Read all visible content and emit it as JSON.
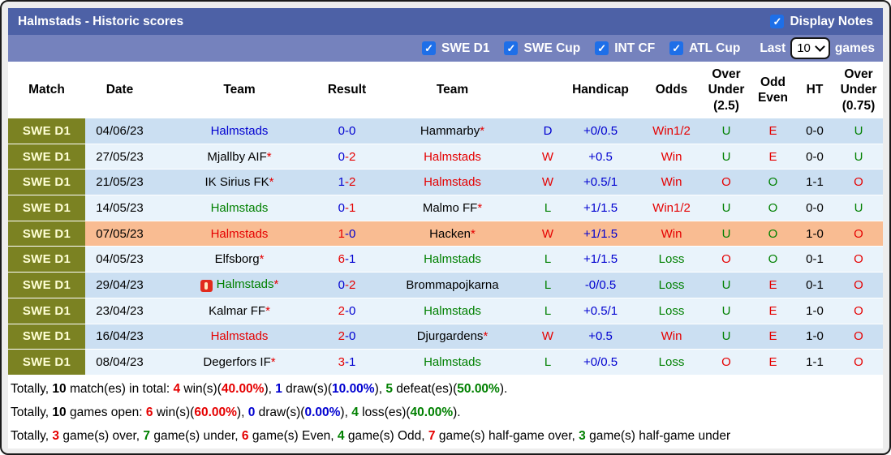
{
  "title_bar": {
    "title": "Halmstads - Historic scores",
    "display_notes_label": "Display Notes"
  },
  "filter_bar": {
    "competitions": [
      "SWE D1",
      "SWE Cup",
      "INT CF",
      "ATL Cup"
    ],
    "last_label": "Last",
    "games_count": "10",
    "games_label": "games"
  },
  "table": {
    "headers": [
      "Match",
      "Date",
      "Team",
      "Result",
      "Team",
      "",
      "Handicap",
      "Odds",
      "Over Under (2.5)",
      "Odd Even",
      "HT",
      "Over Under (0.75)"
    ],
    "rows": [
      {
        "league": "SWE D1",
        "date": "04/06/23",
        "home": {
          "name": "Halmstads",
          "color": "blue",
          "star": false,
          "warn": false
        },
        "score": {
          "home": "0",
          "home_color": "blue",
          "away": "0",
          "away_color": "blue"
        },
        "away": {
          "name": "Hammarby",
          "color": "black",
          "star": true,
          "warn": false
        },
        "letter": {
          "t": "D",
          "c": "blue"
        },
        "handicap": "+0/0.5",
        "odds": {
          "t": "Win1/2",
          "c": "red"
        },
        "ou25": {
          "t": "U",
          "c": "green"
        },
        "odd_even": {
          "t": "E",
          "c": "red"
        },
        "ht": "0-0",
        "ou075": {
          "t": "U",
          "c": "green"
        },
        "bg": "dark"
      },
      {
        "league": "SWE D1",
        "date": "27/05/23",
        "home": {
          "name": "Mjallby AIF",
          "color": "black",
          "star": true,
          "warn": false
        },
        "score": {
          "home": "0",
          "home_color": "blue",
          "away": "2",
          "away_color": "red"
        },
        "away": {
          "name": "Halmstads",
          "color": "red",
          "star": false,
          "warn": false
        },
        "letter": {
          "t": "W",
          "c": "red"
        },
        "handicap": "+0.5",
        "odds": {
          "t": "Win",
          "c": "red"
        },
        "ou25": {
          "t": "U",
          "c": "green"
        },
        "odd_even": {
          "t": "E",
          "c": "red"
        },
        "ht": "0-0",
        "ou075": {
          "t": "U",
          "c": "green"
        },
        "bg": "light"
      },
      {
        "league": "SWE D1",
        "date": "21/05/23",
        "home": {
          "name": "IK Sirius FK",
          "color": "black",
          "star": true,
          "warn": false
        },
        "score": {
          "home": "1",
          "home_color": "blue",
          "away": "2",
          "away_color": "red"
        },
        "away": {
          "name": "Halmstads",
          "color": "red",
          "star": false,
          "warn": false
        },
        "letter": {
          "t": "W",
          "c": "red"
        },
        "handicap": "+0.5/1",
        "odds": {
          "t": "Win",
          "c": "red"
        },
        "ou25": {
          "t": "O",
          "c": "red"
        },
        "odd_even": {
          "t": "O",
          "c": "green"
        },
        "ht": "1-1",
        "ou075": {
          "t": "O",
          "c": "red"
        },
        "bg": "dark"
      },
      {
        "league": "SWE D1",
        "date": "14/05/23",
        "home": {
          "name": "Halmstads",
          "color": "green",
          "star": false,
          "warn": false
        },
        "score": {
          "home": "0",
          "home_color": "blue",
          "away": "1",
          "away_color": "red"
        },
        "away": {
          "name": "Malmo FF",
          "color": "black",
          "star": true,
          "warn": false
        },
        "letter": {
          "t": "L",
          "c": "green"
        },
        "handicap": "+1/1.5",
        "odds": {
          "t": "Win1/2",
          "c": "red"
        },
        "ou25": {
          "t": "U",
          "c": "green"
        },
        "odd_even": {
          "t": "O",
          "c": "green"
        },
        "ht": "0-0",
        "ou075": {
          "t": "U",
          "c": "green"
        },
        "bg": "light"
      },
      {
        "league": "SWE D1",
        "date": "07/05/23",
        "home": {
          "name": "Halmstads",
          "color": "red",
          "star": false,
          "warn": false
        },
        "score": {
          "home": "1",
          "home_color": "red",
          "away": "0",
          "away_color": "blue"
        },
        "away": {
          "name": "Hacken",
          "color": "black",
          "star": true,
          "warn": false
        },
        "letter": {
          "t": "W",
          "c": "red"
        },
        "handicap": "+1/1.5",
        "odds": {
          "t": "Win",
          "c": "red"
        },
        "ou25": {
          "t": "U",
          "c": "green"
        },
        "odd_even": {
          "t": "O",
          "c": "green"
        },
        "ht": "1-0",
        "ou075": {
          "t": "O",
          "c": "red"
        },
        "bg": "orange"
      },
      {
        "league": "SWE D1",
        "date": "04/05/23",
        "home": {
          "name": "Elfsborg",
          "color": "black",
          "star": true,
          "warn": false
        },
        "score": {
          "home": "6",
          "home_color": "red",
          "away": "1",
          "away_color": "blue"
        },
        "away": {
          "name": "Halmstads",
          "color": "green",
          "star": false,
          "warn": false
        },
        "letter": {
          "t": "L",
          "c": "green"
        },
        "handicap": "+1/1.5",
        "odds": {
          "t": "Loss",
          "c": "green"
        },
        "ou25": {
          "t": "O",
          "c": "red"
        },
        "odd_even": {
          "t": "O",
          "c": "green"
        },
        "ht": "0-1",
        "ou075": {
          "t": "O",
          "c": "red"
        },
        "bg": "light"
      },
      {
        "league": "SWE D1",
        "date": "29/04/23",
        "home": {
          "name": "Halmstads",
          "color": "green",
          "star": true,
          "warn": true
        },
        "score": {
          "home": "0",
          "home_color": "blue",
          "away": "2",
          "away_color": "red"
        },
        "away": {
          "name": "Brommapojkarna",
          "color": "black",
          "star": false,
          "warn": false
        },
        "letter": {
          "t": "L",
          "c": "green"
        },
        "handicap": "-0/0.5",
        "odds": {
          "t": "Loss",
          "c": "green"
        },
        "ou25": {
          "t": "U",
          "c": "green"
        },
        "odd_even": {
          "t": "E",
          "c": "red"
        },
        "ht": "0-1",
        "ou075": {
          "t": "O",
          "c": "red"
        },
        "bg": "dark"
      },
      {
        "league": "SWE D1",
        "date": "23/04/23",
        "home": {
          "name": "Kalmar FF",
          "color": "black",
          "star": true,
          "warn": false
        },
        "score": {
          "home": "2",
          "home_color": "red",
          "away": "0",
          "away_color": "blue"
        },
        "away": {
          "name": "Halmstads",
          "color": "green",
          "star": false,
          "warn": false
        },
        "letter": {
          "t": "L",
          "c": "green"
        },
        "handicap": "+0.5/1",
        "odds": {
          "t": "Loss",
          "c": "green"
        },
        "ou25": {
          "t": "U",
          "c": "green"
        },
        "odd_even": {
          "t": "E",
          "c": "red"
        },
        "ht": "1-0",
        "ou075": {
          "t": "O",
          "c": "red"
        },
        "bg": "light"
      },
      {
        "league": "SWE D1",
        "date": "16/04/23",
        "home": {
          "name": "Halmstads",
          "color": "red",
          "star": false,
          "warn": false
        },
        "score": {
          "home": "2",
          "home_color": "red",
          "away": "0",
          "away_color": "blue"
        },
        "away": {
          "name": "Djurgardens",
          "color": "black",
          "star": true,
          "warn": false
        },
        "letter": {
          "t": "W",
          "c": "red"
        },
        "handicap": "+0.5",
        "odds": {
          "t": "Win",
          "c": "red"
        },
        "ou25": {
          "t": "U",
          "c": "green"
        },
        "odd_even": {
          "t": "E",
          "c": "red"
        },
        "ht": "1-0",
        "ou075": {
          "t": "O",
          "c": "red"
        },
        "bg": "dark"
      },
      {
        "league": "SWE D1",
        "date": "08/04/23",
        "home": {
          "name": "Degerfors IF",
          "color": "black",
          "star": true,
          "warn": false
        },
        "score": {
          "home": "3",
          "home_color": "red",
          "away": "1",
          "away_color": "blue"
        },
        "away": {
          "name": "Halmstads",
          "color": "green",
          "star": false,
          "warn": false
        },
        "letter": {
          "t": "L",
          "c": "green"
        },
        "handicap": "+0/0.5",
        "odds": {
          "t": "Loss",
          "c": "green"
        },
        "ou25": {
          "t": "O",
          "c": "red"
        },
        "odd_even": {
          "t": "E",
          "c": "red"
        },
        "ht": "1-1",
        "ou075": {
          "t": "O",
          "c": "red"
        },
        "bg": "light"
      }
    ]
  },
  "summary_lines": [
    [
      {
        "t": "Totally, "
      },
      {
        "t": "10",
        "b": true
      },
      {
        "t": " match(es) in total: "
      },
      {
        "t": "4",
        "c": "red",
        "b": true
      },
      {
        "t": " win(s)("
      },
      {
        "t": "40.00%",
        "c": "red",
        "b": true
      },
      {
        "t": "), "
      },
      {
        "t": "1",
        "c": "blue",
        "b": true
      },
      {
        "t": " draw(s)("
      },
      {
        "t": "10.00%",
        "c": "blue",
        "b": true
      },
      {
        "t": "), "
      },
      {
        "t": "5",
        "c": "green",
        "b": true
      },
      {
        "t": " defeat(es)("
      },
      {
        "t": "50.00%",
        "c": "green",
        "b": true
      },
      {
        "t": ")."
      }
    ],
    [
      {
        "t": "Totally, "
      },
      {
        "t": "10",
        "b": true
      },
      {
        "t": " games open: "
      },
      {
        "t": "6",
        "c": "red",
        "b": true
      },
      {
        "t": " win(s)("
      },
      {
        "t": "60.00%",
        "c": "red",
        "b": true
      },
      {
        "t": "), "
      },
      {
        "t": "0",
        "c": "blue",
        "b": true
      },
      {
        "t": " draw(s)("
      },
      {
        "t": "0.00%",
        "c": "blue",
        "b": true
      },
      {
        "t": "), "
      },
      {
        "t": "4",
        "c": "green",
        "b": true
      },
      {
        "t": " loss(es)("
      },
      {
        "t": "40.00%",
        "c": "green",
        "b": true
      },
      {
        "t": ")."
      }
    ],
    [
      {
        "t": "Totally, "
      },
      {
        "t": "3",
        "c": "red",
        "b": true
      },
      {
        "t": " game(s) over, "
      },
      {
        "t": "7",
        "c": "green",
        "b": true
      },
      {
        "t": " game(s) under, "
      },
      {
        "t": "6",
        "c": "red",
        "b": true
      },
      {
        "t": " game(s) Even, "
      },
      {
        "t": "4",
        "c": "green",
        "b": true
      },
      {
        "t": " game(s) Odd, "
      },
      {
        "t": "7",
        "c": "red",
        "b": true
      },
      {
        "t": " game(s) half-game over, "
      },
      {
        "t": "3",
        "c": "green",
        "b": true
      },
      {
        "t": " game(s) half-game under"
      }
    ]
  ],
  "colors": {
    "title_bar": "#4d61a6",
    "filter_bar": "#7582bd",
    "league_cell": "#7b8222",
    "row_dark": "#cbdff2",
    "row_light": "#e9f3fb",
    "row_highlight": "#f9bc92",
    "checkbox": "#1e6fe8",
    "text_blue": "#0000d0",
    "text_red": "#e50000",
    "text_green": "#008000"
  }
}
